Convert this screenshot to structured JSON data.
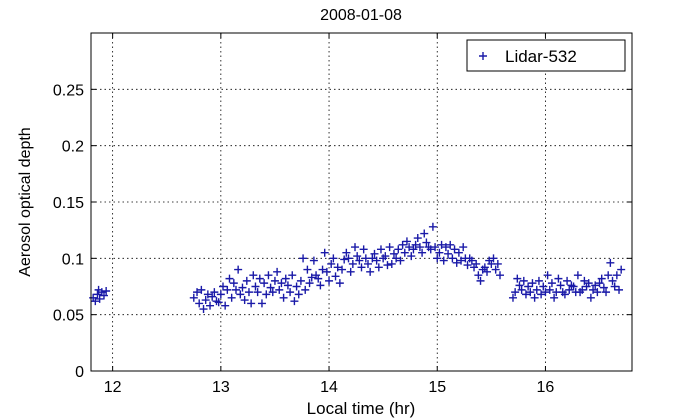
{
  "chart_data": {
    "type": "scatter",
    "title": "2008-01-08",
    "xlabel": "Local time (hr)",
    "ylabel": "Aerosol optical depth",
    "xlim": [
      11.8,
      16.8
    ],
    "ylim": [
      0,
      0.3
    ],
    "xticks": [
      12,
      13,
      14,
      15,
      16
    ],
    "xtick_labels": [
      "12",
      "13",
      "14",
      "15",
      "16"
    ],
    "yticks": [
      0,
      0.05,
      0.1,
      0.15,
      0.2,
      0.25
    ],
    "ytick_labels": [
      "0",
      "0.05",
      "0.1",
      "0.15",
      "0.2",
      "0.25"
    ],
    "grid": true,
    "legend_position": "top-right",
    "marker": "plus",
    "series": [
      {
        "name": "Lidar-532",
        "color": "#1a1aa8",
        "x": [
          11.82,
          11.84,
          11.86,
          11.87,
          11.88,
          11.9,
          11.92,
          11.94,
          12.75,
          12.78,
          12.8,
          12.82,
          12.84,
          12.86,
          12.88,
          12.9,
          12.92,
          12.94,
          12.96,
          12.98,
          13.0,
          13.02,
          13.04,
          13.06,
          13.08,
          13.1,
          13.12,
          13.14,
          13.16,
          13.18,
          13.2,
          13.22,
          13.24,
          13.26,
          13.28,
          13.3,
          13.32,
          13.34,
          13.36,
          13.38,
          13.4,
          13.42,
          13.44,
          13.46,
          13.48,
          13.5,
          13.52,
          13.54,
          13.56,
          13.58,
          13.6,
          13.62,
          13.64,
          13.66,
          13.68,
          13.7,
          13.72,
          13.74,
          13.76,
          13.78,
          13.8,
          13.82,
          13.84,
          13.86,
          13.88,
          13.9,
          13.92,
          13.94,
          13.96,
          13.98,
          14.0,
          14.02,
          14.04,
          14.06,
          14.08,
          14.1,
          14.12,
          14.14,
          14.16,
          14.18,
          14.2,
          14.22,
          14.24,
          14.26,
          14.28,
          14.3,
          14.32,
          14.34,
          14.36,
          14.38,
          14.4,
          14.42,
          14.44,
          14.46,
          14.48,
          14.5,
          14.52,
          14.54,
          14.56,
          14.58,
          14.6,
          14.62,
          14.64,
          14.66,
          14.68,
          14.7,
          14.72,
          14.74,
          14.76,
          14.78,
          14.8,
          14.82,
          14.84,
          14.86,
          14.88,
          14.9,
          14.92,
          14.94,
          14.96,
          14.98,
          15.0,
          15.02,
          15.04,
          15.06,
          15.08,
          15.1,
          15.12,
          15.14,
          15.16,
          15.18,
          15.2,
          15.22,
          15.24,
          15.26,
          15.28,
          15.3,
          15.32,
          15.34,
          15.36,
          15.38,
          15.4,
          15.42,
          15.44,
          15.46,
          15.48,
          15.5,
          15.52,
          15.54,
          15.56,
          15.58,
          15.7,
          15.72,
          15.74,
          15.76,
          15.78,
          15.8,
          15.82,
          15.84,
          15.86,
          15.88,
          15.9,
          15.92,
          15.94,
          15.96,
          15.98,
          16.0,
          16.02,
          16.04,
          16.06,
          16.08,
          16.1,
          16.12,
          16.14,
          16.16,
          16.18,
          16.2,
          16.22,
          16.24,
          16.26,
          16.28,
          16.3,
          16.32,
          16.34,
          16.36,
          16.38,
          16.4,
          16.42,
          16.44,
          16.46,
          16.48,
          16.5,
          16.52,
          16.54,
          16.56,
          16.58,
          16.6,
          16.62,
          16.64,
          16.66,
          16.68,
          16.7
        ],
        "y": [
          0.065,
          0.062,
          0.068,
          0.072,
          0.064,
          0.07,
          0.067,
          0.071,
          0.065,
          0.07,
          0.06,
          0.072,
          0.055,
          0.063,
          0.068,
          0.058,
          0.066,
          0.07,
          0.062,
          0.061,
          0.068,
          0.075,
          0.058,
          0.072,
          0.082,
          0.065,
          0.078,
          0.072,
          0.09,
          0.068,
          0.074,
          0.063,
          0.08,
          0.07,
          0.06,
          0.085,
          0.075,
          0.07,
          0.082,
          0.06,
          0.078,
          0.068,
          0.085,
          0.074,
          0.07,
          0.08,
          0.088,
          0.072,
          0.078,
          0.065,
          0.082,
          0.076,
          0.07,
          0.085,
          0.062,
          0.075,
          0.068,
          0.08,
          0.1,
          0.072,
          0.09,
          0.078,
          0.083,
          0.098,
          0.085,
          0.082,
          0.076,
          0.09,
          0.105,
          0.088,
          0.08,
          0.095,
          0.1,
          0.084,
          0.092,
          0.078,
          0.09,
          0.099,
          0.105,
          0.1,
          0.088,
          0.095,
          0.11,
          0.102,
          0.098,
          0.092,
          0.108,
          0.1,
          0.095,
          0.088,
          0.1,
          0.104,
          0.098,
          0.092,
          0.108,
          0.1,
          0.102,
          0.094,
          0.11,
          0.095,
          0.104,
          0.1,
          0.108,
          0.098,
          0.112,
          0.105,
          0.115,
          0.11,
          0.102,
          0.108,
          0.112,
          0.118,
          0.11,
          0.105,
          0.122,
          0.114,
          0.11,
          0.108,
          0.128,
          0.11,
          0.1,
          0.105,
          0.112,
          0.098,
          0.11,
          0.104,
          0.112,
          0.1,
          0.108,
          0.096,
          0.105,
          0.098,
          0.11,
          0.1,
          0.094,
          0.1,
          0.098,
          0.092,
          0.095,
          0.085,
          0.08,
          0.09,
          0.092,
          0.088,
          0.098,
          0.095,
          0.1,
          0.09,
          0.095,
          0.085,
          0.065,
          0.07,
          0.082,
          0.076,
          0.072,
          0.08,
          0.068,
          0.075,
          0.07,
          0.078,
          0.065,
          0.072,
          0.08,
          0.068,
          0.075,
          0.07,
          0.085,
          0.072,
          0.078,
          0.065,
          0.07,
          0.082,
          0.076,
          0.07,
          0.068,
          0.08,
          0.072,
          0.076,
          0.075,
          0.07,
          0.085,
          0.07,
          0.072,
          0.08,
          0.075,
          0.078,
          0.065,
          0.072,
          0.076,
          0.07,
          0.078,
          0.082,
          0.074,
          0.07,
          0.085,
          0.096,
          0.08,
          0.075,
          0.085,
          0.072,
          0.09
        ]
      }
    ]
  }
}
